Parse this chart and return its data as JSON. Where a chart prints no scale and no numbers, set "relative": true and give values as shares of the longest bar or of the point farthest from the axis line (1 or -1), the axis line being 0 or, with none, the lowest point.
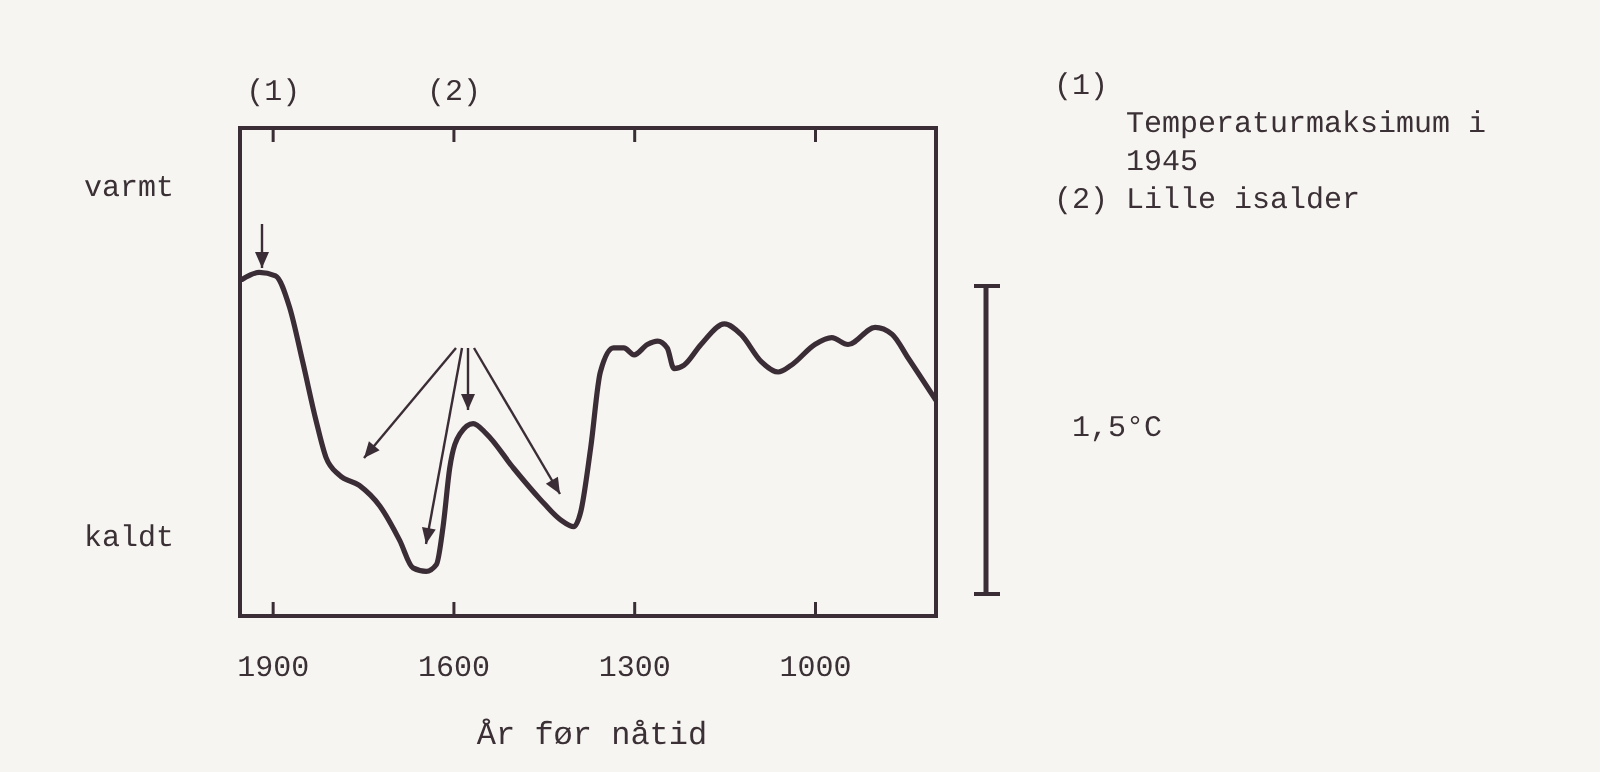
{
  "chart_data": {
    "type": "line",
    "xlabel": "År før nåtid",
    "relative": true,
    "line_style": "solid",
    "x": [
      1951,
      1923,
      1896,
      1873,
      1851,
      1829,
      1812,
      1790,
      1757,
      1723,
      1690,
      1668,
      1646,
      1629,
      1618,
      1607,
      1590,
      1568,
      1546,
      1501,
      1457,
      1423,
      1401,
      1390,
      1373,
      1357,
      1335,
      1318,
      1301,
      1279,
      1262,
      1246,
      1235,
      1218,
      1190,
      1151,
      1124,
      1090,
      1062,
      1040,
      1001,
      973,
      946,
      901,
      873,
      846,
      801
    ],
    "series": [
      {
        "color": "#3b2d36",
        "values": [
          0.98,
          1.0,
          0.99,
          0.9,
          0.74,
          0.57,
          0.46,
          0.41,
          0.38,
          0.32,
          0.22,
          0.14,
          0.13,
          0.15,
          0.26,
          0.43,
          0.53,
          0.56,
          0.53,
          0.43,
          0.34,
          0.28,
          0.26,
          0.3,
          0.49,
          0.71,
          0.78,
          0.78,
          0.76,
          0.79,
          0.8,
          0.78,
          0.72,
          0.73,
          0.79,
          0.85,
          0.82,
          0.74,
          0.71,
          0.73,
          0.79,
          0.81,
          0.79,
          0.84,
          0.82,
          0.75,
          0.63
        ]
      }
    ],
    "xlim": [
      1955,
      800
    ],
    "xticks": [
      1900,
      1600,
      1300,
      1000
    ],
    "annotations": [
      "(1)",
      "(2)",
      "varmt",
      "kaldt",
      "(1) Temperaturmaksimum i 1945",
      "(2) Lille isalder",
      "1,5°C"
    ]
  }
}
